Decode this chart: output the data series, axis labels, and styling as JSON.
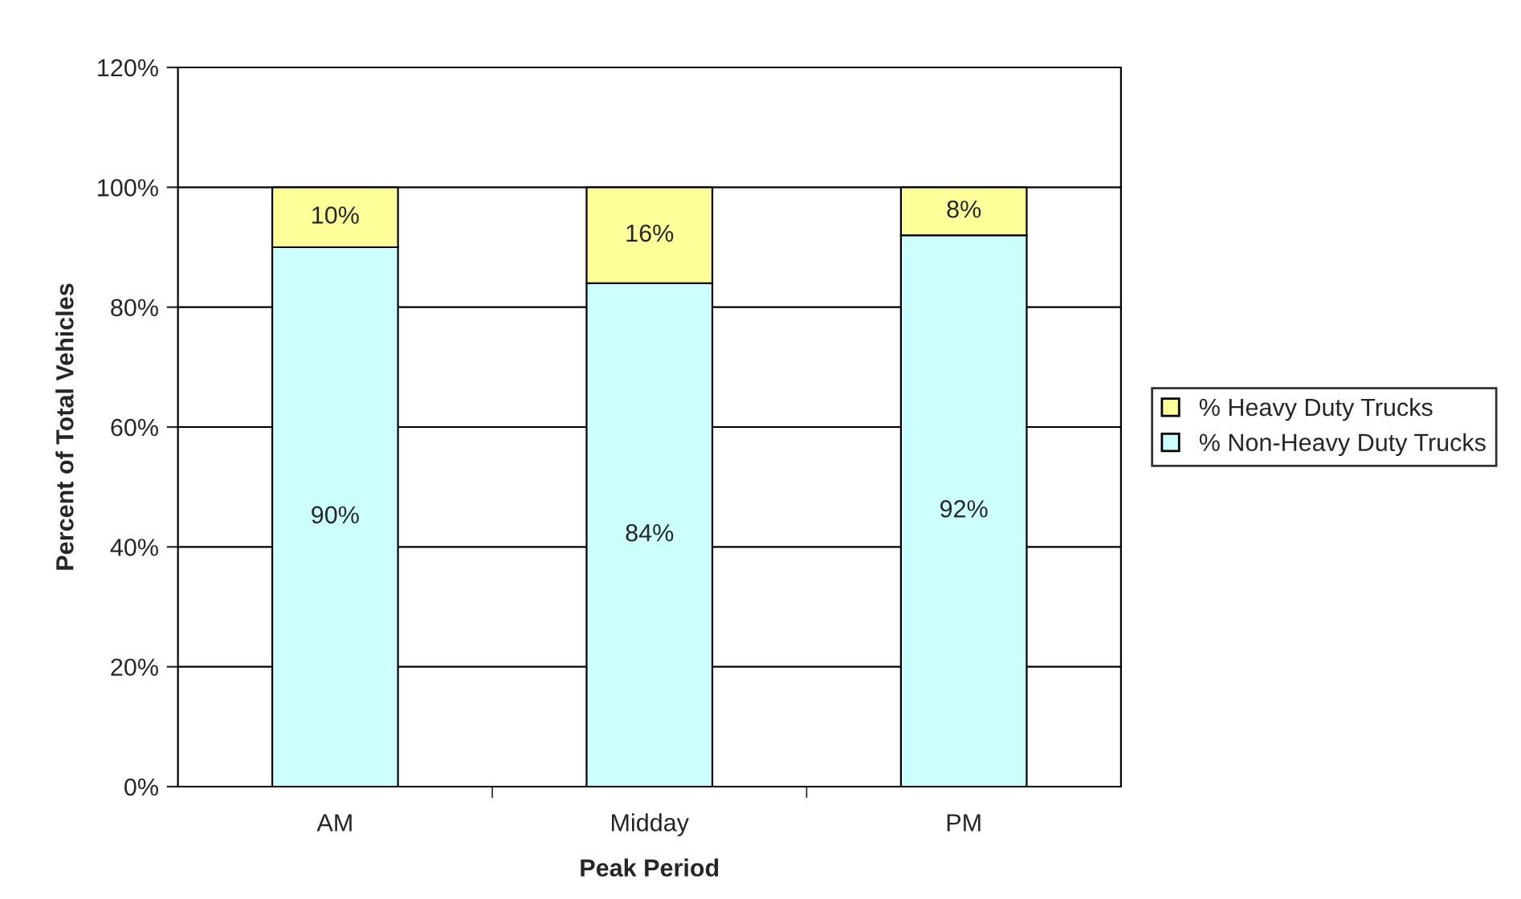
{
  "chart_data": {
    "type": "bar",
    "stacked": true,
    "xlabel": "Peak Period",
    "ylabel": "Percent of Total Vehicles",
    "categories": [
      "AM",
      "Midday",
      "PM"
    ],
    "series": [
      {
        "name": "% Non-Heavy Duty Trucks",
        "color": "#ccffff",
        "values": [
          90,
          84,
          92
        ],
        "value_labels": [
          "90%",
          "84%",
          "92%"
        ]
      },
      {
        "name": "% Heavy Duty Trucks",
        "color": "#ffff99",
        "values": [
          10,
          16,
          8
        ],
        "value_labels": [
          "10%",
          "16%",
          "8%"
        ]
      }
    ],
    "ylim": [
      0,
      120
    ],
    "yticks": [
      {
        "value": 0,
        "label": "0%"
      },
      {
        "value": 20,
        "label": "20%"
      },
      {
        "value": 40,
        "label": "40%"
      },
      {
        "value": 60,
        "label": "60%"
      },
      {
        "value": 80,
        "label": "80%"
      },
      {
        "value": 100,
        "label": "100%"
      },
      {
        "value": 120,
        "label": "120%"
      }
    ],
    "grid": "y",
    "legend": "right"
  }
}
